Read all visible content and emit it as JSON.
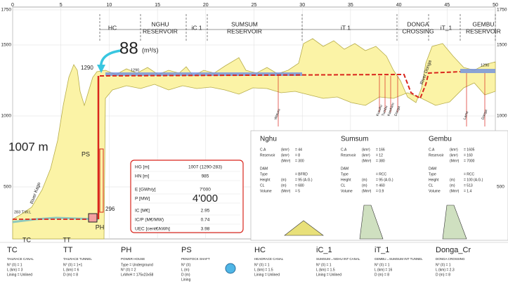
{
  "axis": {
    "top": [
      0,
      5,
      10,
      15,
      20,
      25,
      30,
      35,
      40,
      45,
      50
    ],
    "left": [
      1750,
      1500,
      1000,
      500
    ],
    "right": [
      1750,
      1500,
      1000,
      500
    ]
  },
  "sections": [
    [
      "HC"
    ],
    [
      "NGHU",
      "RESERVOIR"
    ],
    [
      "iC 1"
    ],
    [
      "SUMSUM",
      "RESERVOIR"
    ],
    [
      "iT 1"
    ],
    [
      "DONGA",
      "CROSSING"
    ],
    [
      "iT_1"
    ],
    [
      "GEMBU",
      "RESERVOIR"
    ]
  ],
  "flow": {
    "value": "88",
    "unit": "(m³/s)"
  },
  "head": "1007 m",
  "levels": [
    "1290",
    "1290",
    "1290",
    "296",
    "283 T.W.L"
  ],
  "structures": [
    "PS",
    "PH",
    "TC",
    "TT"
  ],
  "rivers": [
    "River Kago",
    "Waturu",
    "Kusuku",
    "Tumbu",
    "Kamkam",
    "Donga",
    "River Donga",
    "Lame",
    "Donga"
  ],
  "summary": {
    "rows": [
      [
        "HG [m]",
        "1007 (1290-283)"
      ],
      [
        "HN [m]",
        "985"
      ],
      [
        "E [GWh/y]",
        "7'000"
      ],
      [
        "P [MW]",
        "4'000"
      ],
      [
        "IC [M€]",
        "2.95"
      ],
      [
        "IC/P (M€/MW)",
        "0.74"
      ],
      [
        "UEC [cent€/kWh]",
        "3.98"
      ]
    ]
  },
  "reservoirs": [
    {
      "name": "Nghu",
      "lines": [
        [
          "C.A",
          "(km²)",
          "= 44"
        ],
        [
          "Reservoir",
          "(km²)",
          "= 8"
        ],
        [
          "",
          "(Mm³)",
          "= 300"
        ],
        [
          "DAM",
          "",
          ""
        ],
        [
          "Type",
          "",
          "= BFRD"
        ],
        [
          "Height",
          "(m)",
          "= 95 (A.G.)"
        ],
        [
          "CL",
          "(m)",
          "= 680"
        ],
        [
          "Volume",
          "(Mm³)",
          "= 5"
        ]
      ]
    },
    {
      "name": "Sumsum",
      "lines": [
        [
          "C.A",
          "(km²)",
          "= 166"
        ],
        [
          "Reservoir",
          "(km²)",
          "= 12"
        ],
        [
          "",
          "(Mm³)",
          "= 380"
        ],
        [
          "DAM",
          "",
          ""
        ],
        [
          "Type",
          "",
          "= RCC"
        ],
        [
          "Height",
          "(m)",
          "= 95 (A.G.)"
        ],
        [
          "CL",
          "(m)",
          "= 460"
        ],
        [
          "Volume",
          "(Mm³)",
          "= 0.9"
        ]
      ]
    },
    {
      "name": "Gembu",
      "lines": [
        [
          "C.A",
          "(km²)",
          "= 1605"
        ],
        [
          "Reservoir",
          "(km²)",
          "= 160"
        ],
        [
          "",
          "(Mm³)",
          "= 7000"
        ],
        [
          "DAM",
          "",
          ""
        ],
        [
          "Type",
          "",
          "= RCC"
        ],
        [
          "Height",
          "(m)",
          "= 100 (A.G.)"
        ],
        [
          "CL",
          "(m)",
          "= 513"
        ],
        [
          "Volume",
          "(Mm³)",
          "= 1.4"
        ]
      ]
    }
  ],
  "legend": [
    {
      "code": "TC",
      "title": "TAILRACE CANAL",
      "lines": [
        "N° (#) = 1",
        "L (km) = 3",
        "Lining = Unlined"
      ]
    },
    {
      "code": "TT",
      "title": "TAILRACE TUNNEL",
      "lines": [
        "N° (#) = 1+1",
        "L (km) = 6",
        "D (m) = 8"
      ]
    },
    {
      "code": "PH",
      "title": "POWER HOUSE",
      "lines": [
        "Type = Underground",
        "N° (#) = 2",
        "LxWxH = 175x23x58"
      ]
    },
    {
      "code": "PS",
      "title": "PENSTOCK SHAFT",
      "lines": [
        "N° (#)",
        "L (m)",
        "D (m)",
        "Lining"
      ]
    },
    {
      "code": "HC",
      "title": "HEADRACE CANAL",
      "lines": [
        "N° (#) = 1",
        "L (km) = 1.5",
        "Lining = Unlined"
      ]
    },
    {
      "code": "iC_1",
      "title": "SUMSUM→NGHU INT CANAL",
      "lines": [
        "N° (#) = 1",
        "L (km) = 1.5",
        "Lining = Unlined"
      ]
    },
    {
      "code": "iT_1",
      "title": "GEMBU→SUMSUM INT TUNNEL",
      "lines": [
        "N° (#) = 1",
        "L (km) = 16",
        "D (m) = 8"
      ]
    },
    {
      "code": "Donga_Cr",
      "title": "DONGA CROSSING",
      "lines": [
        "N° (#) = 1",
        "L (km) = 2.3",
        "D (m) = 8"
      ]
    }
  ]
}
